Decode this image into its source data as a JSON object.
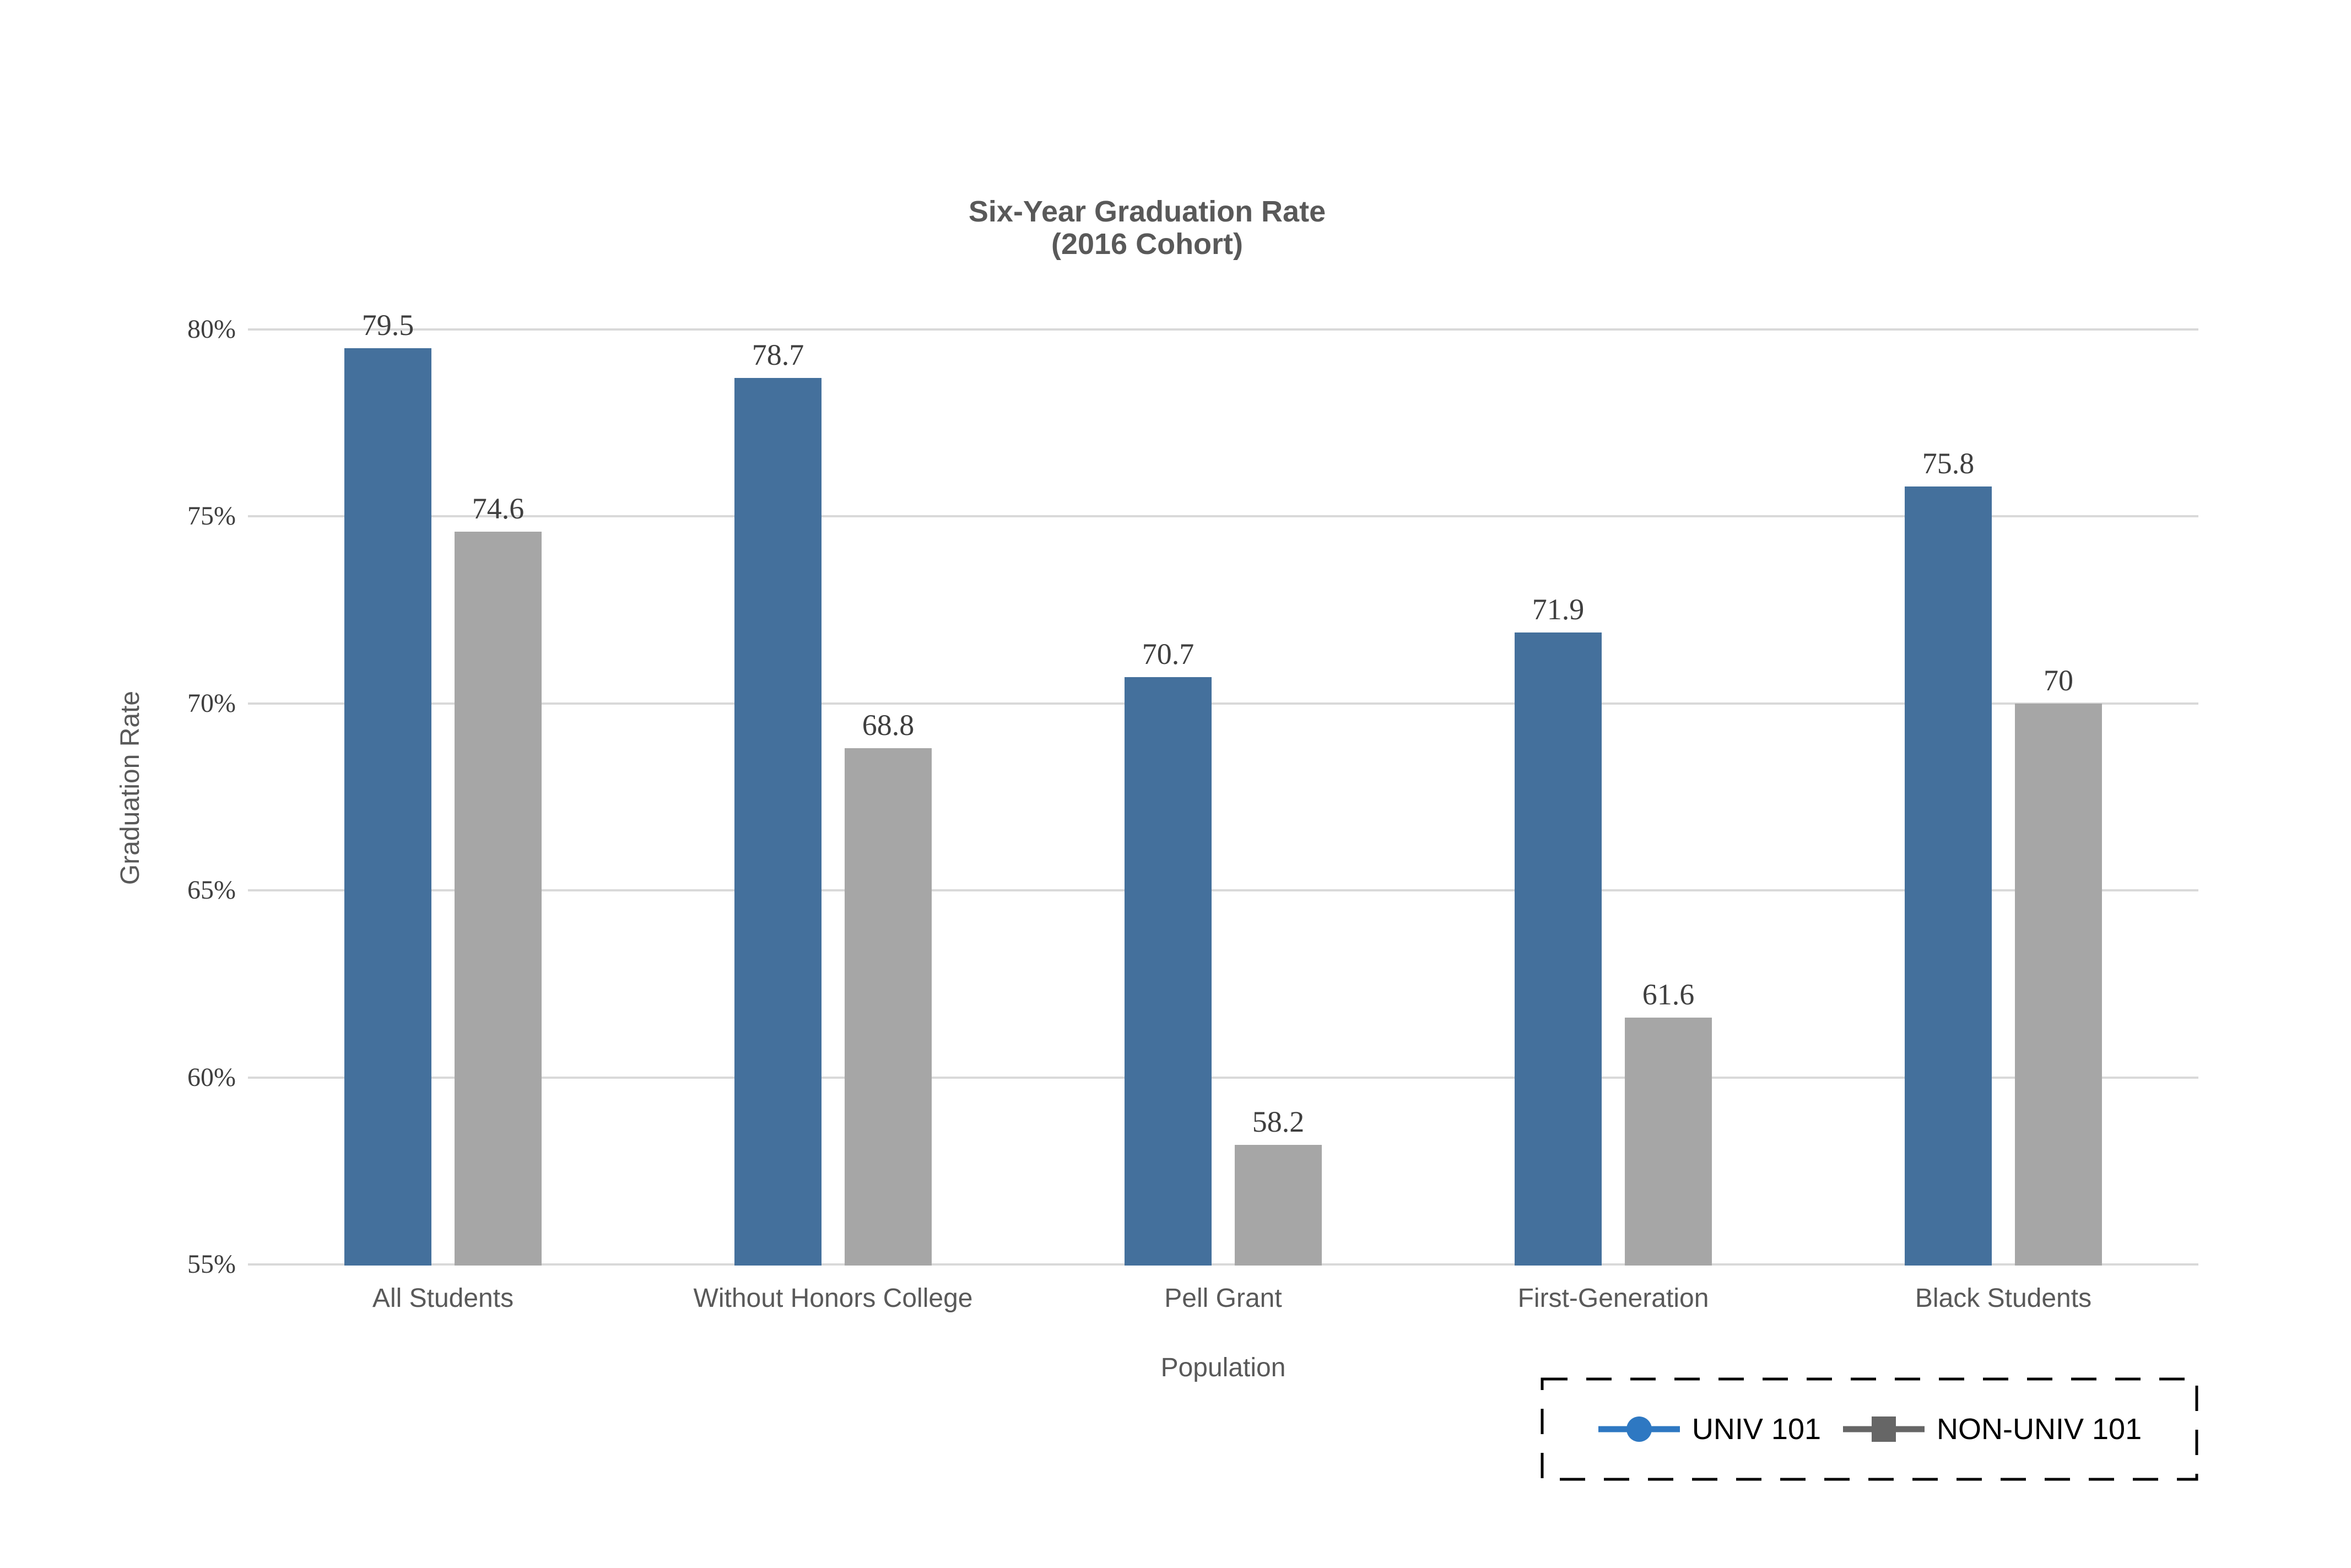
{
  "title": {
    "line1": "Six-Year Graduation Rate",
    "line2": "(2016 Cohort)"
  },
  "axes": {
    "y_label": "Graduation Rate",
    "x_label": "Population"
  },
  "legend": {
    "items": [
      {
        "label": "UNIV 101",
        "marker": "line-circle",
        "color": "#2E78C2"
      },
      {
        "label": "NON-UNIV 101",
        "marker": "line-square",
        "color": "#666666"
      }
    ],
    "border_style": "dashed",
    "border_color": "#000000"
  },
  "colors": {
    "background": "#FFFFFF",
    "bar_blue": "#44709C",
    "bar_gray": "#A6A6A6",
    "gridline": "#D9D9D9",
    "tick_text": "#3F3F3F",
    "data_label_text": "#3F3F3F",
    "axis_text": "#595959",
    "title_text": "#595959",
    "legend_text": "#000000"
  },
  "chart_data": {
    "type": "bar",
    "title": "Six-Year Graduation Rate (2016 Cohort)",
    "categories": [
      "All Students",
      "Without Honors College",
      "Pell Grant",
      "First-Generation",
      "Black Students"
    ],
    "series": [
      {
        "name": "UNIV 101",
        "color": "#44709C",
        "values": [
          79.5,
          78.7,
          70.7,
          71.9,
          75.8
        ]
      },
      {
        "name": "NON-UNIV 101",
        "color": "#A6A6A6",
        "values": [
          74.6,
          68.8,
          58.2,
          61.6,
          70
        ]
      }
    ],
    "xlabel": "Population",
    "ylabel": "Graduation Rate",
    "ylim": [
      55,
      80
    ],
    "yticks": [
      {
        "value": 80,
        "label": "80%"
      },
      {
        "value": 75,
        "label": "75%"
      },
      {
        "value": 70,
        "label": "70%"
      },
      {
        "value": 65,
        "label": "65%"
      },
      {
        "value": 60,
        "label": "60%"
      },
      {
        "value": 55,
        "label": "55%"
      }
    ],
    "grid": true,
    "data_labels": true,
    "legend_position": "bottom-right"
  }
}
